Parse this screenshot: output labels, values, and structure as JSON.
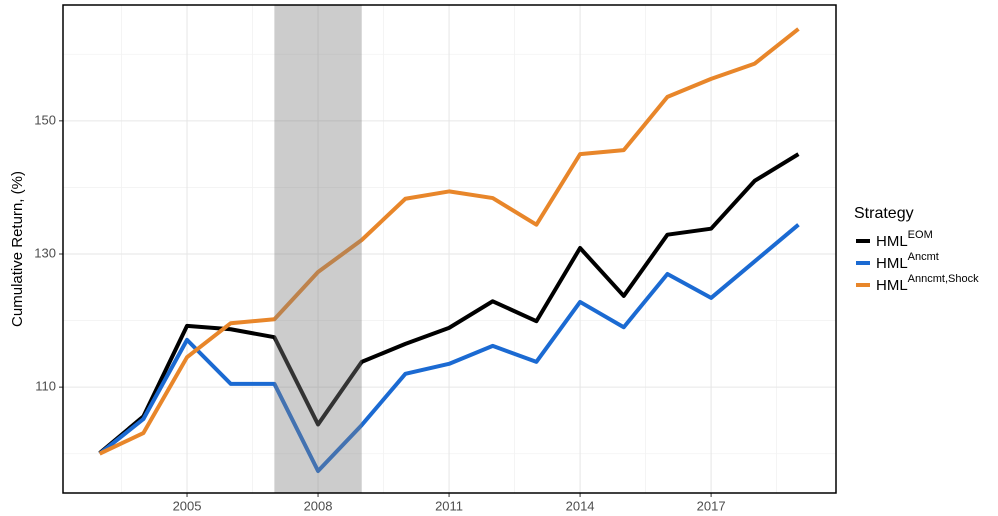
{
  "chart_data": {
    "type": "line",
    "y_label": "Cumulative Return, (%)",
    "legend_title": "Strategy",
    "legend_position": "right",
    "x": [
      2003,
      2004,
      2005,
      2006,
      2007,
      2008,
      2009,
      2010,
      2011,
      2012,
      2013,
      2014,
      2015,
      2016,
      2017,
      2018,
      2019
    ],
    "series": [
      {
        "name": "HML",
        "superscript": "EOM",
        "color": "#000000",
        "values": [
          100.1,
          105.6,
          119.2,
          118.7,
          117.5,
          104.4,
          113.8,
          116.5,
          118.9,
          122.9,
          119.9,
          130.9,
          123.7,
          132.9,
          133.8,
          141.0,
          145.0
        ]
      },
      {
        "name": "HML",
        "superscript": "Ancmt",
        "color": "#1b6ad2",
        "values": [
          100.0,
          105.2,
          117.1,
          110.5,
          110.5,
          97.4,
          104.3,
          112.0,
          113.5,
          116.2,
          113.8,
          122.8,
          119.0,
          127.0,
          123.4,
          128.9,
          134.4
        ]
      },
      {
        "name": "HML",
        "superscript": "Anncmt,Shock",
        "color": "#e8862a",
        "values": [
          100.0,
          103.1,
          114.5,
          119.6,
          120.2,
          127.3,
          132.1,
          138.3,
          139.4,
          138.4,
          134.4,
          145.0,
          145.6,
          153.6,
          156.3,
          158.6,
          163.8
        ]
      }
    ],
    "shaded_region": [
      2007,
      2009
    ],
    "xlim": [
      2002.16,
      2019.86
    ],
    "ylim": [
      94.1,
      167.4
    ],
    "xticks": [
      2005,
      2008,
      2011,
      2014,
      2017
    ],
    "yticks": [
      110,
      130,
      150
    ],
    "x_minor_ticks": [
      2003.5,
      2006.5,
      2009.5,
      2012.5,
      2015.5,
      2018.5
    ],
    "y_minor_ticks": [
      100,
      120,
      140,
      160
    ],
    "grid": true
  }
}
